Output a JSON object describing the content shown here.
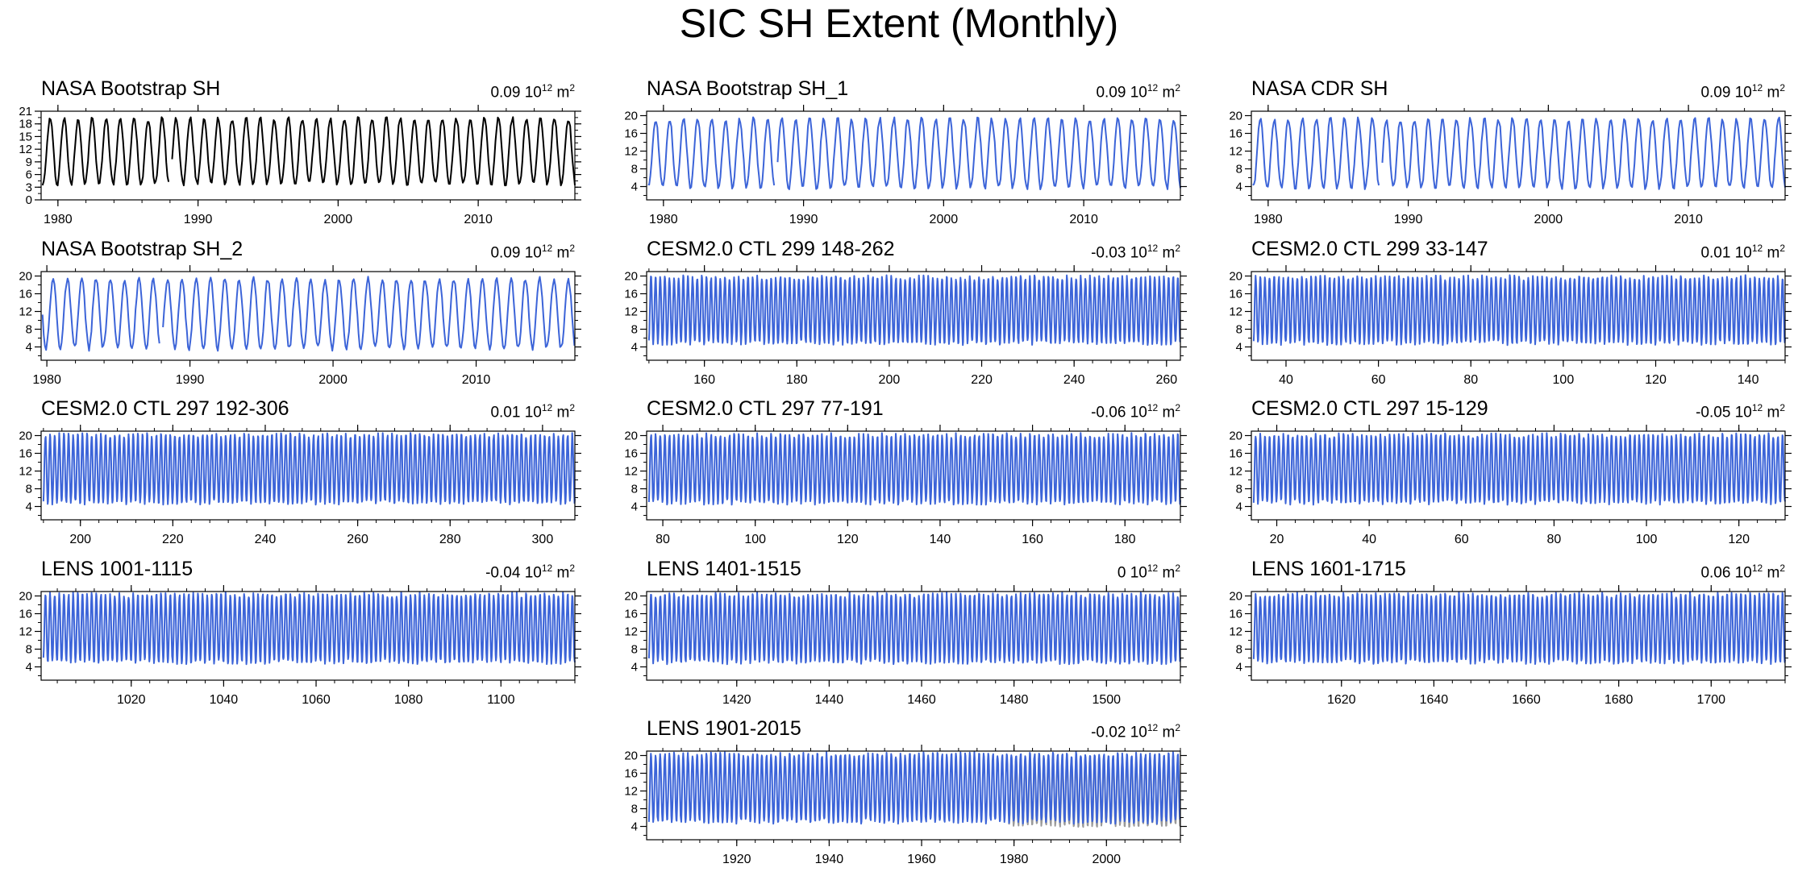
{
  "page_title": "SIC SH Extent (Monthly)",
  "chart_data": [
    {
      "type": "line",
      "title": "NASA Bootstrap SH",
      "trend_value": "0.09",
      "trend_unit_base": "10",
      "trend_unit_exp": "12",
      "trend_unit_suffix": " m",
      "trend_unit_sup": "2",
      "xlim": [
        1978.8,
        2016.9
      ],
      "ylim": [
        0,
        21
      ],
      "yticks": [
        0,
        3,
        6,
        9,
        12,
        15,
        18,
        21
      ],
      "xticks": [
        1980,
        1990,
        2000,
        2010
      ],
      "series": [
        {
          "color": "#000000",
          "mean": 11.5,
          "amplitude": 7.8,
          "start": 1978.9,
          "end": 2016.9,
          "gap": [
            1987.9,
            1988.1
          ]
        }
      ]
    },
    {
      "type": "line",
      "title": "NASA Bootstrap SH_1",
      "trend_value": "0.09",
      "trend_unit_base": "10",
      "trend_unit_exp": "12",
      "trend_unit_suffix": " m",
      "trend_unit_sup": "2",
      "xlim": [
        1978.8,
        2016.9
      ],
      "ylim": [
        1,
        21
      ],
      "yticks": [
        4,
        8,
        12,
        16,
        20
      ],
      "xticks": [
        1980,
        1990,
        2000,
        2010
      ],
      "series": [
        {
          "color": "#3c64d8",
          "mean": 11.5,
          "amplitude": 7.8,
          "start": 1978.9,
          "end": 2016.9,
          "gap": [
            1987.9,
            1988.1
          ]
        }
      ]
    },
    {
      "type": "line",
      "title": "NASA CDR SH",
      "trend_value": "0.09",
      "trend_unit_base": "10",
      "trend_unit_exp": "12",
      "trend_unit_suffix": " m",
      "trend_unit_sup": "2",
      "xlim": [
        1978.8,
        2016.9
      ],
      "ylim": [
        1,
        21
      ],
      "yticks": [
        4,
        8,
        12,
        16,
        20
      ],
      "xticks": [
        1980,
        1990,
        2000,
        2010
      ],
      "series": [
        {
          "color": "#3c64d8",
          "mean": 11.5,
          "amplitude": 7.8,
          "start": 1978.9,
          "end": 2016.9,
          "gap": [
            1987.9,
            1988.1
          ]
        }
      ]
    },
    {
      "type": "line",
      "title": "NASA Bootstrap SH_2",
      "trend_value": "0.09",
      "trend_unit_base": "10",
      "trend_unit_exp": "12",
      "trend_unit_suffix": " m",
      "trend_unit_sup": "2",
      "xlim": [
        1979.6,
        2016.9
      ],
      "ylim": [
        1,
        21
      ],
      "yticks": [
        4,
        8,
        12,
        16,
        20
      ],
      "xticks": [
        1980,
        1990,
        2000,
        2010
      ],
      "series": [
        {
          "color": "#3c64d8",
          "mean": 11.5,
          "amplitude": 7.8,
          "start": 1979.7,
          "end": 2016.9,
          "gap": [
            1987.9,
            1988.1
          ]
        }
      ]
    },
    {
      "type": "line",
      "title": "CESM2.0 CTL 299 148-262",
      "trend_value": "-0.03",
      "trend_unit_base": "10",
      "trend_unit_exp": "12",
      "trend_unit_suffix": " m",
      "trend_unit_sup": "2",
      "xlim": [
        147.5,
        263
      ],
      "ylim": [
        1,
        21
      ],
      "yticks": [
        4,
        8,
        12,
        16,
        20
      ],
      "xticks": [
        160,
        180,
        200,
        220,
        240,
        260
      ],
      "series": [
        {
          "color": "#3c64d8",
          "mean": 12.3,
          "amplitude": 7.4,
          "start": 148,
          "end": 263
        }
      ]
    },
    {
      "type": "line",
      "title": "CESM2.0 CTL 299 33-147",
      "trend_value": "0.01",
      "trend_unit_base": "10",
      "trend_unit_exp": "12",
      "trend_unit_suffix": " m",
      "trend_unit_sup": "2",
      "xlim": [
        32.5,
        148
      ],
      "ylim": [
        1,
        21
      ],
      "yticks": [
        4,
        8,
        12,
        16,
        20
      ],
      "xticks": [
        40,
        60,
        80,
        100,
        120,
        140
      ],
      "series": [
        {
          "color": "#3c64d8",
          "mean": 12.3,
          "amplitude": 7.4,
          "start": 33,
          "end": 148
        }
      ]
    },
    {
      "type": "line",
      "title": "CESM2.0 CTL 297 192-306",
      "trend_value": "0.01",
      "trend_unit_base": "10",
      "trend_unit_exp": "12",
      "trend_unit_suffix": " m",
      "trend_unit_sup": "2",
      "xlim": [
        191.5,
        307
      ],
      "ylim": [
        1,
        21
      ],
      "yticks": [
        4,
        8,
        12,
        16,
        20
      ],
      "xticks": [
        200,
        220,
        240,
        260,
        280,
        300
      ],
      "series": [
        {
          "color": "#3c64d8",
          "mean": 12.5,
          "amplitude": 7.6,
          "start": 192,
          "end": 307
        }
      ]
    },
    {
      "type": "line",
      "title": "CESM2.0 CTL 297 77-191",
      "trend_value": "-0.06",
      "trend_unit_base": "10",
      "trend_unit_exp": "12",
      "trend_unit_suffix": " m",
      "trend_unit_sup": "2",
      "xlim": [
        76.5,
        192
      ],
      "ylim": [
        1,
        21
      ],
      "yticks": [
        4,
        8,
        12,
        16,
        20
      ],
      "xticks": [
        80,
        100,
        120,
        140,
        160,
        180
      ],
      "series": [
        {
          "color": "#3c64d8",
          "mean": 12.5,
          "amplitude": 7.6,
          "start": 77,
          "end": 192
        }
      ]
    },
    {
      "type": "line",
      "title": "CESM2.0 CTL 297 15-129",
      "trend_value": "-0.05",
      "trend_unit_base": "10",
      "trend_unit_exp": "12",
      "trend_unit_suffix": " m",
      "trend_unit_sup": "2",
      "xlim": [
        14.5,
        130
      ],
      "ylim": [
        1,
        21
      ],
      "yticks": [
        4,
        8,
        12,
        16,
        20
      ],
      "xticks": [
        20,
        40,
        60,
        80,
        100,
        120
      ],
      "series": [
        {
          "color": "#3c64d8",
          "mean": 12.5,
          "amplitude": 7.6,
          "start": 15,
          "end": 130
        }
      ]
    },
    {
      "type": "line",
      "title": "LENS 1001-1115",
      "trend_value": "-0.04",
      "trend_unit_base": "10",
      "trend_unit_exp": "12",
      "trend_unit_suffix": " m",
      "trend_unit_sup": "2",
      "xlim": [
        1000.5,
        1116
      ],
      "ylim": [
        1,
        21
      ],
      "yticks": [
        4,
        8,
        12,
        16,
        20
      ],
      "xticks": [
        1020,
        1040,
        1060,
        1080,
        1100
      ],
      "series": [
        {
          "color": "#3c64d8",
          "mean": 12.7,
          "amplitude": 7.6,
          "start": 1001,
          "end": 1116
        }
      ]
    },
    {
      "type": "line",
      "title": "LENS 1401-1515",
      "trend_value": "0",
      "trend_unit_base": "10",
      "trend_unit_exp": "12",
      "trend_unit_suffix": " m",
      "trend_unit_sup": "2",
      "xlim": [
        1400.5,
        1516
      ],
      "ylim": [
        1,
        21
      ],
      "yticks": [
        4,
        8,
        12,
        16,
        20
      ],
      "xticks": [
        1420,
        1440,
        1460,
        1480,
        1500
      ],
      "series": [
        {
          "color": "#3c64d8",
          "mean": 12.7,
          "amplitude": 7.6,
          "start": 1401,
          "end": 1516
        }
      ]
    },
    {
      "type": "line",
      "title": "LENS 1601-1715",
      "trend_value": "0.06",
      "trend_unit_base": "10",
      "trend_unit_exp": "12",
      "trend_unit_suffix": " m",
      "trend_unit_sup": "2",
      "xlim": [
        1600.5,
        1716
      ],
      "ylim": [
        1,
        21
      ],
      "yticks": [
        4,
        8,
        12,
        16,
        20
      ],
      "xticks": [
        1620,
        1640,
        1660,
        1680,
        1700
      ],
      "series": [
        {
          "color": "#3c64d8",
          "mean": 12.7,
          "amplitude": 7.6,
          "start": 1601,
          "end": 1716
        }
      ]
    },
    {
      "type": "line",
      "title": "LENS 1901-2015",
      "trend_value": "-0.02",
      "trend_unit_base": "10",
      "trend_unit_exp": "12",
      "trend_unit_suffix": " m",
      "trend_unit_sup": "2",
      "xlim": [
        1900.5,
        2016
      ],
      "ylim": [
        1,
        21
      ],
      "yticks": [
        4,
        8,
        12,
        16,
        20
      ],
      "xticks": [
        1920,
        1940,
        1960,
        1980,
        2000
      ],
      "series": [
        {
          "color": "#999999",
          "mean": 11.8,
          "amplitude": 7.6,
          "start": 1978.9,
          "end": 2016
        },
        {
          "color": "#3c64d8",
          "mean": 12.7,
          "amplitude": 7.6,
          "start": 1901,
          "end": 2016
        }
      ]
    }
  ]
}
